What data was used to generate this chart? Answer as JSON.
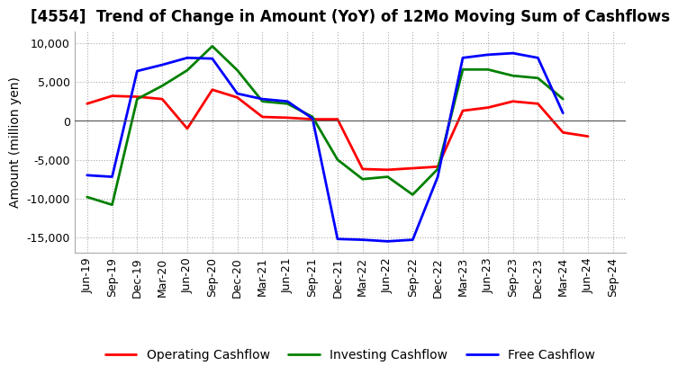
{
  "title": "[4554]  Trend of Change in Amount (YoY) of 12Mo Moving Sum of Cashflows",
  "ylabel": "Amount (million yen)",
  "x_labels": [
    "Jun-19",
    "Sep-19",
    "Dec-19",
    "Mar-20",
    "Jun-20",
    "Sep-20",
    "Dec-20",
    "Mar-21",
    "Jun-21",
    "Sep-21",
    "Dec-21",
    "Mar-22",
    "Jun-22",
    "Sep-22",
    "Dec-22",
    "Mar-23",
    "Jun-23",
    "Sep-23",
    "Dec-23",
    "Mar-24",
    "Jun-24",
    "Sep-24"
  ],
  "operating_cashflow": [
    2200,
    3200,
    3100,
    2800,
    -1000,
    4000,
    3000,
    500,
    400,
    200,
    200,
    -6200,
    -6300,
    -6100,
    -5900,
    1300,
    1700,
    2500,
    2200,
    -1500,
    -2000,
    null
  ],
  "investing_cashflow": [
    -9800,
    -10800,
    2800,
    4500,
    6500,
    9600,
    6500,
    2500,
    2200,
    500,
    -5000,
    -7500,
    -7200,
    -9500,
    -6200,
    6600,
    6600,
    5800,
    5500,
    2800,
    null,
    null
  ],
  "free_cashflow": [
    -7000,
    -7200,
    6400,
    7200,
    8100,
    8000,
    3500,
    2800,
    2500,
    300,
    -15200,
    -15300,
    -15500,
    -15300,
    -7200,
    8100,
    8500,
    8700,
    8100,
    1000,
    null,
    null
  ],
  "ylim": [
    -17000,
    11500
  ],
  "yticks": [
    -15000,
    -10000,
    -5000,
    0,
    5000,
    10000
  ],
  "colors": {
    "operating": "#ff0000",
    "investing": "#008000",
    "free": "#0000ff"
  },
  "line_width": 2.0,
  "background_color": "#ffffff",
  "grid_color": "#aaaaaa",
  "title_fontsize": 12,
  "label_fontsize": 10,
  "tick_fontsize": 9,
  "legend_fontsize": 10
}
